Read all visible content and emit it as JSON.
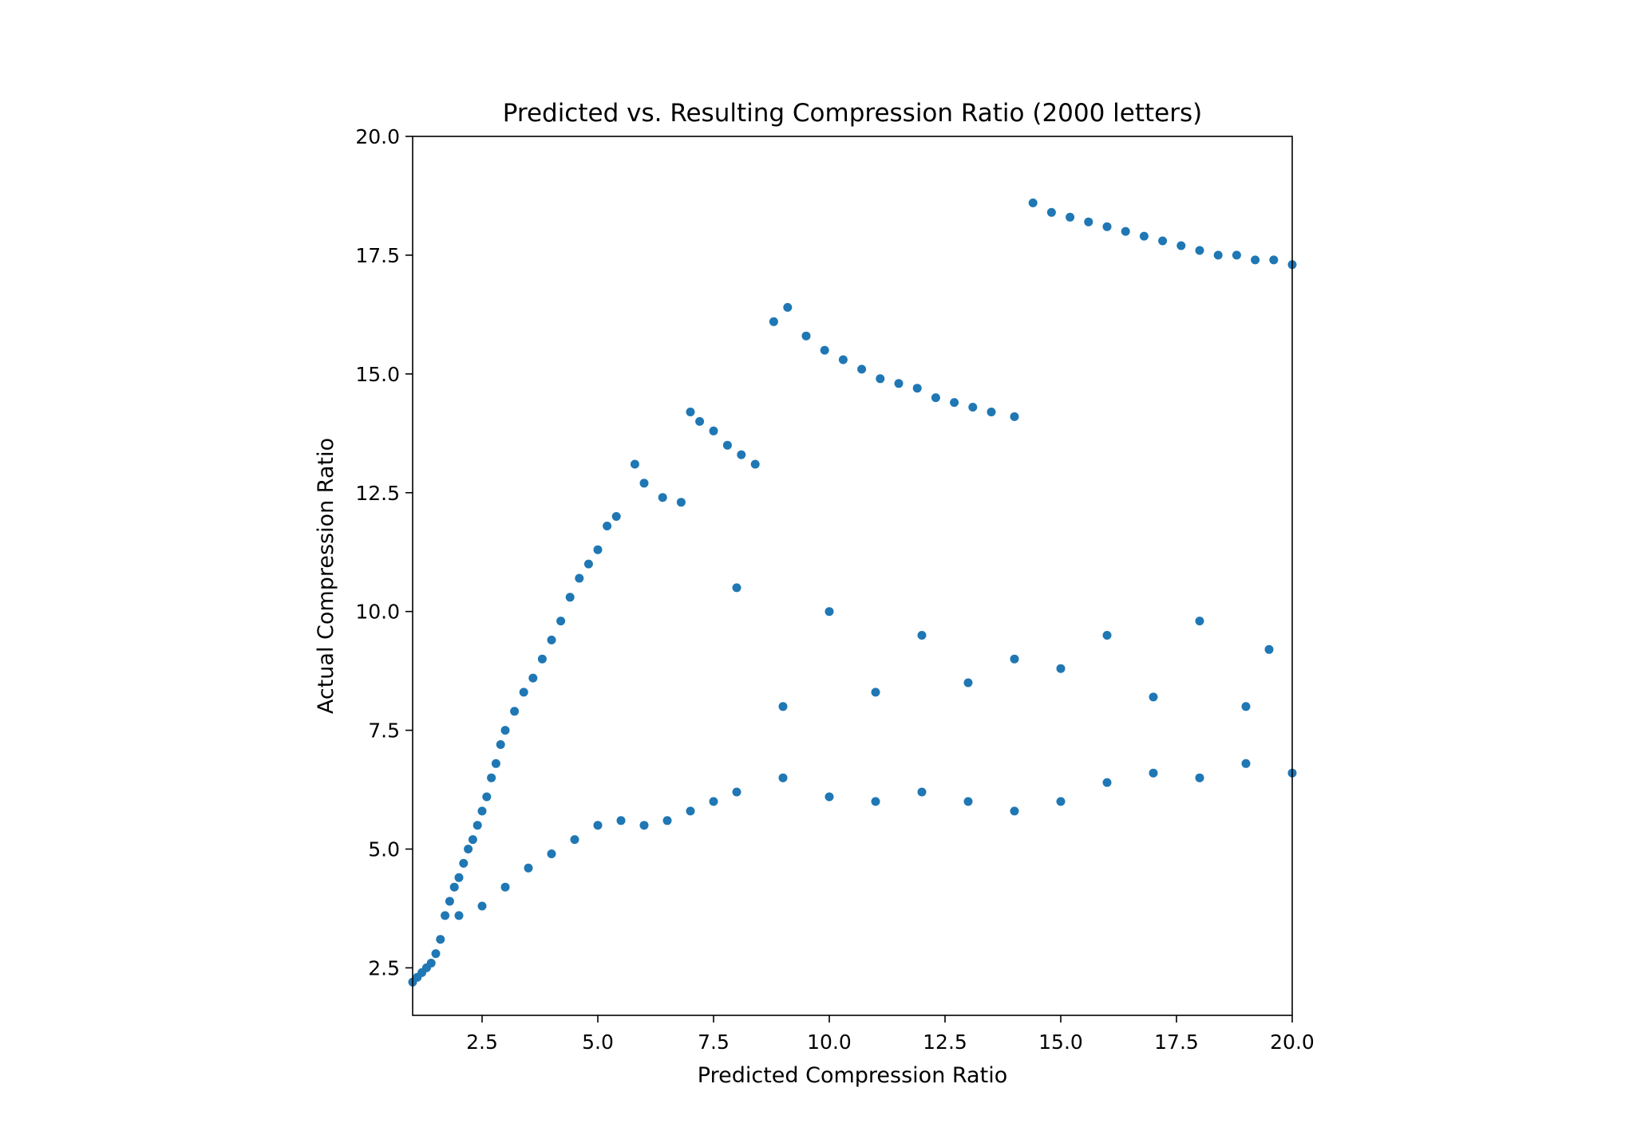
{
  "chart_data": {
    "type": "scatter",
    "title": "Predicted vs. Resulting Compression Ratio (2000 letters)",
    "xlabel": "Predicted Compression Ratio",
    "ylabel": "Actual Compression Ratio",
    "xlim": [
      1.0,
      20.0
    ],
    "ylim": [
      1.5,
      20.0
    ],
    "xticks": [
      2.5,
      5.0,
      7.5,
      10.0,
      12.5,
      15.0,
      17.5,
      20.0
    ],
    "xtick_labels": [
      "2.5",
      "5.0",
      "7.5",
      "10.0",
      "12.5",
      "15.0",
      "17.5",
      "20.0"
    ],
    "yticks": [
      2.5,
      5.0,
      7.5,
      10.0,
      12.5,
      15.0,
      17.5,
      20.0
    ],
    "ytick_labels": [
      "2.5",
      "5.0",
      "7.5",
      "10.0",
      "12.5",
      "15.0",
      "17.5",
      "20.0"
    ],
    "grid": false,
    "legend": "none",
    "marker_color": "#1f77b4",
    "n_points_approx": 2000,
    "points": [
      [
        1.0,
        2.2
      ],
      [
        1.1,
        2.3
      ],
      [
        1.2,
        2.4
      ],
      [
        1.3,
        2.5
      ],
      [
        1.4,
        2.6
      ],
      [
        1.5,
        2.8
      ],
      [
        1.6,
        3.1
      ],
      [
        1.7,
        3.6
      ],
      [
        1.8,
        3.9
      ],
      [
        1.9,
        4.2
      ],
      [
        2.0,
        4.4
      ],
      [
        2.1,
        4.7
      ],
      [
        2.2,
        5.0
      ],
      [
        2.3,
        5.2
      ],
      [
        2.4,
        5.5
      ],
      [
        2.5,
        5.8
      ],
      [
        2.6,
        6.1
      ],
      [
        2.7,
        6.5
      ],
      [
        2.8,
        6.8
      ],
      [
        2.9,
        7.2
      ],
      [
        3.0,
        7.5
      ],
      [
        3.2,
        7.9
      ],
      [
        3.4,
        8.3
      ],
      [
        3.6,
        8.6
      ],
      [
        3.8,
        9.0
      ],
      [
        4.0,
        9.4
      ],
      [
        4.2,
        9.8
      ],
      [
        4.4,
        10.3
      ],
      [
        4.6,
        10.7
      ],
      [
        4.8,
        11.0
      ],
      [
        5.0,
        11.3
      ],
      [
        5.2,
        11.8
      ],
      [
        5.4,
        12.0
      ],
      [
        5.8,
        13.1
      ],
      [
        6.0,
        12.7
      ],
      [
        6.4,
        12.4
      ],
      [
        6.8,
        12.3
      ],
      [
        7.0,
        14.2
      ],
      [
        7.2,
        14.0
      ],
      [
        7.5,
        13.8
      ],
      [
        7.8,
        13.5
      ],
      [
        8.1,
        13.3
      ],
      [
        8.4,
        13.1
      ],
      [
        8.8,
        16.1
      ],
      [
        9.1,
        16.4
      ],
      [
        9.5,
        15.8
      ],
      [
        9.9,
        15.5
      ],
      [
        10.3,
        15.3
      ],
      [
        10.7,
        15.1
      ],
      [
        11.1,
        14.9
      ],
      [
        11.5,
        14.8
      ],
      [
        11.9,
        14.7
      ],
      [
        12.3,
        14.5
      ],
      [
        12.7,
        14.4
      ],
      [
        13.1,
        14.3
      ],
      [
        13.5,
        14.2
      ],
      [
        14.0,
        14.1
      ],
      [
        14.4,
        18.6
      ],
      [
        14.8,
        18.4
      ],
      [
        15.2,
        18.3
      ],
      [
        15.6,
        18.2
      ],
      [
        16.0,
        18.1
      ],
      [
        16.4,
        18.0
      ],
      [
        16.8,
        17.9
      ],
      [
        17.2,
        17.8
      ],
      [
        17.6,
        17.7
      ],
      [
        18.0,
        17.6
      ],
      [
        18.4,
        17.5
      ],
      [
        18.8,
        17.5
      ],
      [
        19.2,
        17.4
      ],
      [
        19.6,
        17.4
      ],
      [
        20.0,
        17.3
      ],
      [
        2.0,
        3.6
      ],
      [
        2.5,
        3.8
      ],
      [
        3.0,
        4.2
      ],
      [
        3.5,
        4.6
      ],
      [
        4.0,
        4.9
      ],
      [
        4.5,
        5.2
      ],
      [
        5.0,
        5.5
      ],
      [
        5.5,
        5.6
      ],
      [
        6.0,
        5.5
      ],
      [
        6.5,
        5.6
      ],
      [
        7.0,
        5.8
      ],
      [
        7.5,
        6.0
      ],
      [
        8.0,
        6.2
      ],
      [
        9.0,
        6.5
      ],
      [
        10.0,
        6.1
      ],
      [
        11.0,
        6.0
      ],
      [
        12.0,
        6.2
      ],
      [
        13.0,
        6.0
      ],
      [
        14.0,
        5.8
      ],
      [
        15.0,
        6.0
      ],
      [
        16.0,
        6.4
      ],
      [
        17.0,
        6.6
      ],
      [
        18.0,
        6.5
      ],
      [
        19.0,
        6.8
      ],
      [
        20.0,
        6.6
      ],
      [
        8.0,
        10.5
      ],
      [
        10.0,
        10.0
      ],
      [
        12.0,
        9.5
      ],
      [
        14.0,
        9.0
      ],
      [
        16.0,
        9.5
      ],
      [
        18.0,
        9.8
      ],
      [
        19.5,
        9.2
      ],
      [
        9.0,
        8.0
      ],
      [
        11.0,
        8.3
      ],
      [
        13.0,
        8.5
      ],
      [
        15.0,
        8.8
      ],
      [
        17.0,
        8.2
      ],
      [
        19.0,
        8.0
      ]
    ]
  }
}
